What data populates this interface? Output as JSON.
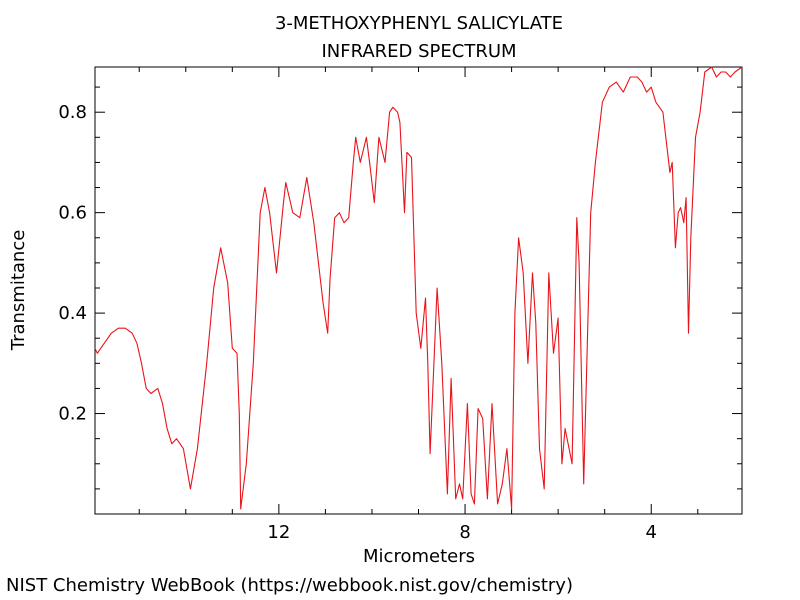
{
  "chart_data": {
    "type": "line",
    "title": "3-METHOXYPHENYL SALICYLATE",
    "subtitle": "INFRARED SPECTRUM",
    "xlabel": "Micrometers",
    "ylabel": "Transmitance",
    "xlim": [
      15.95,
      2.05
    ],
    "ylim": [
      0.0,
      0.89
    ],
    "x_direction": "reversed",
    "x_ticks": [
      12,
      8,
      4
    ],
    "y_ticks": [
      0.2,
      0.4,
      0.6,
      0.8
    ],
    "grid": false,
    "line_color": "#e8141b",
    "series": [
      {
        "x": [
          15.95,
          15.9,
          15.75,
          15.6,
          15.45,
          15.3,
          15.15,
          15.05,
          14.95,
          14.85,
          14.75,
          14.6,
          14.5,
          14.4,
          14.3,
          14.2,
          14.05,
          13.9,
          13.75,
          13.55,
          13.4,
          13.25,
          13.1,
          13.0,
          12.9,
          12.85,
          12.82,
          12.7,
          12.55,
          12.4,
          12.3,
          12.2,
          12.05,
          11.9,
          11.85,
          11.7,
          11.55,
          11.4,
          11.25,
          11.05,
          10.95,
          10.9,
          10.8,
          10.7,
          10.6,
          10.5,
          10.4,
          10.35,
          10.25,
          10.12,
          10.05,
          9.95,
          9.85,
          9.72,
          9.62,
          9.55,
          9.45,
          9.4,
          9.3,
          9.25,
          9.15,
          9.05,
          8.95,
          8.85,
          8.8,
          8.75,
          8.6,
          8.5,
          8.38,
          8.3,
          8.2,
          8.12,
          8.05,
          7.95,
          7.87,
          7.8,
          7.72,
          7.62,
          7.52,
          7.42,
          7.3,
          7.2,
          7.1,
          7.0,
          6.93,
          6.85,
          6.75,
          6.65,
          6.55,
          6.48,
          6.4,
          6.3,
          6.2,
          6.1,
          6.0,
          5.92,
          5.85,
          5.7,
          5.6,
          5.55,
          5.45,
          5.3,
          5.2,
          5.05,
          4.9,
          4.75,
          4.6,
          4.45,
          4.3,
          4.2,
          4.1,
          4.0,
          3.9,
          3.75,
          3.6,
          3.55,
          3.48,
          3.42,
          3.37,
          3.3,
          3.25,
          3.2,
          3.15,
          3.05,
          2.95,
          2.85,
          2.7,
          2.6,
          2.5,
          2.4,
          2.3,
          2.2,
          2.05
        ],
        "y": [
          0.33,
          0.32,
          0.34,
          0.36,
          0.37,
          0.37,
          0.36,
          0.34,
          0.3,
          0.25,
          0.24,
          0.25,
          0.22,
          0.17,
          0.14,
          0.15,
          0.13,
          0.05,
          0.13,
          0.3,
          0.45,
          0.53,
          0.46,
          0.33,
          0.32,
          0.2,
          0.01,
          0.1,
          0.3,
          0.6,
          0.65,
          0.6,
          0.48,
          0.62,
          0.66,
          0.6,
          0.59,
          0.67,
          0.58,
          0.42,
          0.36,
          0.47,
          0.59,
          0.6,
          0.58,
          0.59,
          0.7,
          0.75,
          0.7,
          0.75,
          0.7,
          0.62,
          0.75,
          0.7,
          0.8,
          0.81,
          0.8,
          0.78,
          0.6,
          0.72,
          0.71,
          0.4,
          0.33,
          0.43,
          0.3,
          0.12,
          0.45,
          0.3,
          0.04,
          0.27,
          0.03,
          0.06,
          0.03,
          0.22,
          0.04,
          0.02,
          0.21,
          0.19,
          0.03,
          0.22,
          0.02,
          0.06,
          0.13,
          0.01,
          0.4,
          0.55,
          0.48,
          0.3,
          0.48,
          0.38,
          0.13,
          0.05,
          0.48,
          0.32,
          0.39,
          0.1,
          0.17,
          0.1,
          0.59,
          0.5,
          0.06,
          0.6,
          0.7,
          0.82,
          0.85,
          0.86,
          0.84,
          0.87,
          0.87,
          0.86,
          0.84,
          0.85,
          0.82,
          0.8,
          0.68,
          0.7,
          0.53,
          0.6,
          0.61,
          0.58,
          0.63,
          0.36,
          0.55,
          0.75,
          0.8,
          0.88,
          0.89,
          0.87,
          0.88,
          0.88,
          0.87,
          0.88,
          0.89
        ]
      }
    ]
  },
  "footer": "NIST Chemistry WebBook (https://webbook.nist.gov/chemistry)"
}
